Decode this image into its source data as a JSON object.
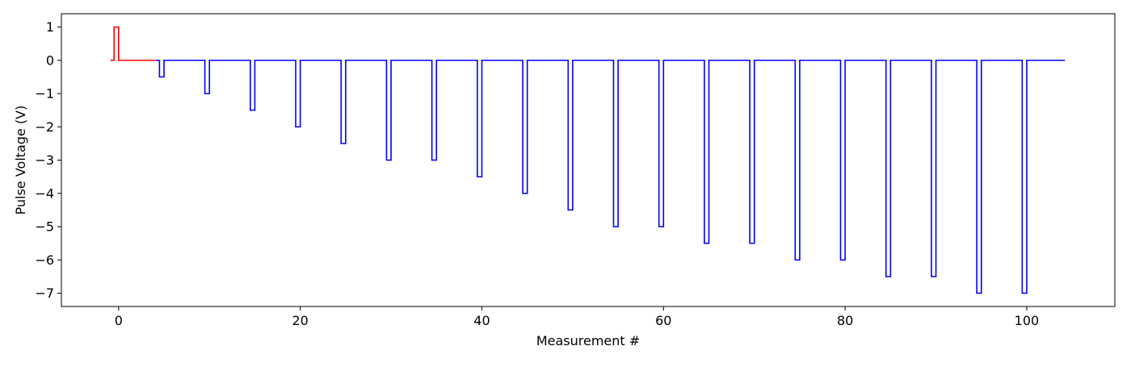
{
  "chart_data": {
    "type": "line",
    "title": "",
    "xlabel": "Measurement #",
    "ylabel": "Pulse Voltage (V)",
    "xlim": [
      -6.3,
      109.7
    ],
    "ylim": [
      -7.4,
      1.4
    ],
    "grid": false,
    "legend": "none",
    "x_ticks": [
      0,
      20,
      40,
      60,
      80,
      100
    ],
    "y_ticks": [
      1,
      0,
      -1,
      -2,
      -3,
      -4,
      -5,
      -6,
      -7
    ],
    "x_tick_labels": [
      "0",
      "20",
      "40",
      "60",
      "80",
      "100"
    ],
    "y_tick_labels": [
      "1",
      "0",
      "−1",
      "−2",
      "−3",
      "−4",
      "−5",
      "−6",
      "−7"
    ],
    "step_width": 0.5,
    "series": [
      {
        "color": "#ff0000",
        "style": "step",
        "x": [
          -0.9,
          -0.5,
          0,
          4.1
        ],
        "y": [
          0,
          1,
          0,
          0
        ]
      },
      {
        "color": "#0000ff",
        "style": "step",
        "pulse_x": [
          4.5,
          9.5,
          14.5,
          19.5,
          24.5,
          29.5,
          34.5,
          39.5,
          44.5,
          49.5,
          54.5,
          59.5,
          64.5,
          69.5,
          74.5,
          79.5,
          84.5,
          89.5,
          94.5,
          99.5
        ],
        "pulse_y": [
          -0.5,
          -1,
          -1.5,
          -2,
          -2.5,
          -3,
          -3,
          -3.5,
          -4,
          -4.5,
          -5,
          -5,
          -5.5,
          -5.5,
          -6,
          -6,
          -6.5,
          -6.5,
          -7,
          -7
        ],
        "baseline": 0,
        "x_start": 4.1,
        "x_end": 104.2
      }
    ]
  }
}
